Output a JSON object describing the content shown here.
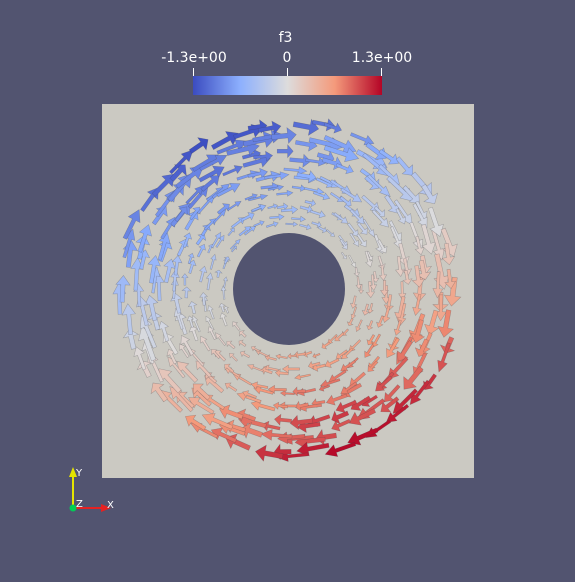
{
  "legend": {
    "title": "f3",
    "min_label": "-1.3e+00",
    "mid_label": "0",
    "max_label": "1.3e+00",
    "colormap": [
      "#3b4cc0",
      "#8db0fe",
      "#dddcdc",
      "#f49a7b",
      "#b40426"
    ]
  },
  "axes": {
    "y_label": "Y",
    "z_label": "Z",
    "x_label": "X",
    "y_color": "#e5e500",
    "x_color": "#e52222",
    "z_color": "#00cc55"
  },
  "colors": {
    "background": "#525470",
    "domain": "#cbc9c2"
  }
}
